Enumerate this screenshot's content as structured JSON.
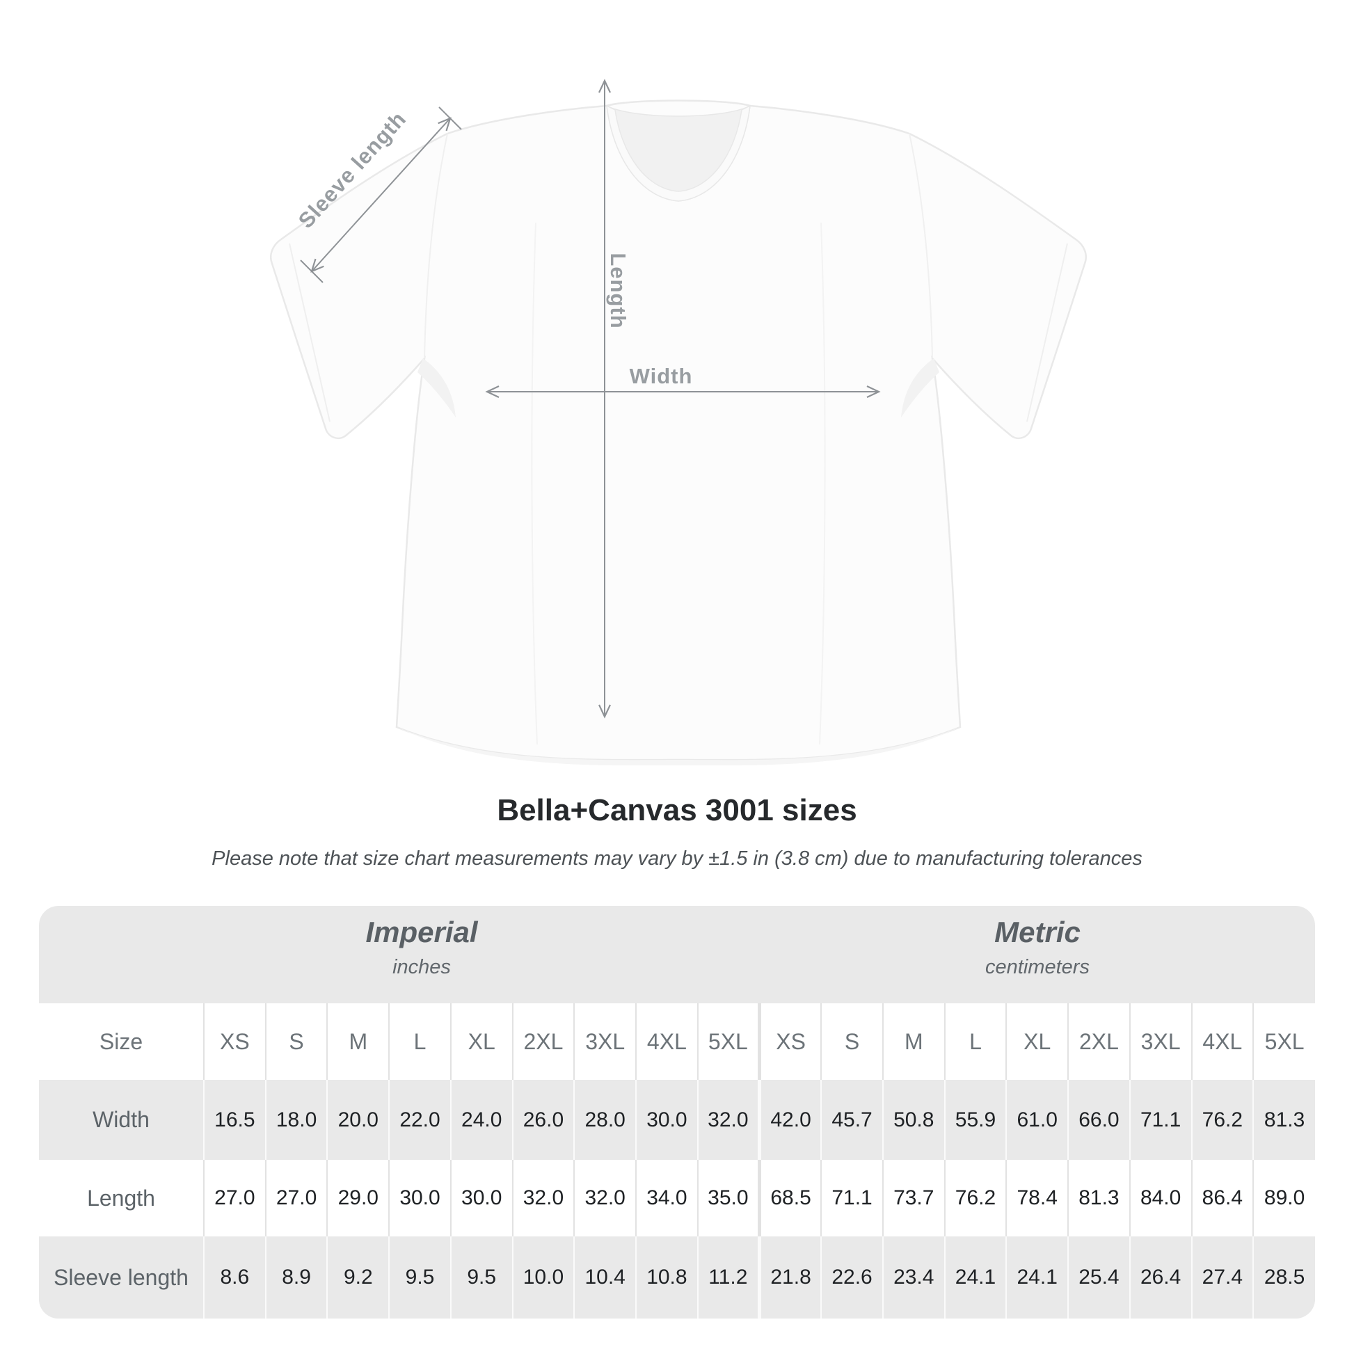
{
  "diagram": {
    "labels": {
      "sleeve_length": "Sleeve length",
      "length": "Length",
      "width": "Width"
    },
    "arrow_color": "#8e9296",
    "label_color": "#989da1"
  },
  "title": "Bella+Canvas 3001 sizes",
  "subtitle": "Please note that size chart measurements may vary by ±1.5 in (3.8 cm) due to manufacturing tolerances",
  "table": {
    "groups": [
      {
        "title": "Imperial",
        "subtitle": "inches"
      },
      {
        "title": "Metric",
        "subtitle": "centimeters"
      }
    ],
    "size_header": "Size",
    "sizes": [
      "XS",
      "S",
      "M",
      "L",
      "XL",
      "2XL",
      "3XL",
      "4XL",
      "5XL"
    ],
    "rows": [
      {
        "label": "Width",
        "imperial": [
          "16.5",
          "18.0",
          "20.0",
          "22.0",
          "24.0",
          "26.0",
          "28.0",
          "30.0",
          "32.0"
        ],
        "metric": [
          "42.0",
          "45.7",
          "50.8",
          "55.9",
          "61.0",
          "66.0",
          "71.1",
          "76.2",
          "81.3"
        ]
      },
      {
        "label": "Length",
        "imperial": [
          "27.0",
          "27.0",
          "29.0",
          "30.0",
          "30.0",
          "32.0",
          "32.0",
          "34.0",
          "35.0"
        ],
        "metric": [
          "68.5",
          "71.1",
          "73.7",
          "76.2",
          "78.4",
          "81.3",
          "84.0",
          "86.4",
          "89.0"
        ]
      },
      {
        "label": "Sleeve length",
        "imperial": [
          "8.6",
          "8.9",
          "9.2",
          "9.5",
          "9.5",
          "10.0",
          "10.4",
          "10.8",
          "11.2"
        ],
        "metric": [
          "21.8",
          "22.6",
          "23.4",
          "24.1",
          "24.1",
          "25.4",
          "26.4",
          "27.4",
          "28.5"
        ]
      }
    ]
  },
  "chart_data": {
    "type": "table",
    "title": "Bella+Canvas 3001 sizes",
    "note": "Please note that size chart measurements may vary by ±1.5 in (3.8 cm) due to manufacturing tolerances",
    "unit_groups": [
      {
        "name": "Imperial",
        "unit": "inches"
      },
      {
        "name": "Metric",
        "unit": "centimeters"
      }
    ],
    "columns": [
      "XS",
      "S",
      "M",
      "L",
      "XL",
      "2XL",
      "3XL",
      "4XL",
      "5XL"
    ],
    "rows": [
      {
        "measure": "Width",
        "imperial_in": [
          16.5,
          18.0,
          20.0,
          22.0,
          24.0,
          26.0,
          28.0,
          30.0,
          32.0
        ],
        "metric_cm": [
          42.0,
          45.7,
          50.8,
          55.9,
          61.0,
          66.0,
          71.1,
          76.2,
          81.3
        ]
      },
      {
        "measure": "Length",
        "imperial_in": [
          27.0,
          27.0,
          29.0,
          30.0,
          30.0,
          32.0,
          32.0,
          34.0,
          35.0
        ],
        "metric_cm": [
          68.5,
          71.1,
          73.7,
          76.2,
          78.4,
          81.3,
          84.0,
          86.4,
          89.0
        ]
      },
      {
        "measure": "Sleeve length",
        "imperial_in": [
          8.6,
          8.9,
          9.2,
          9.5,
          9.5,
          10.0,
          10.4,
          10.8,
          11.2
        ],
        "metric_cm": [
          21.8,
          22.6,
          23.4,
          24.1,
          24.1,
          25.4,
          26.4,
          27.4,
          28.5
        ]
      }
    ]
  }
}
